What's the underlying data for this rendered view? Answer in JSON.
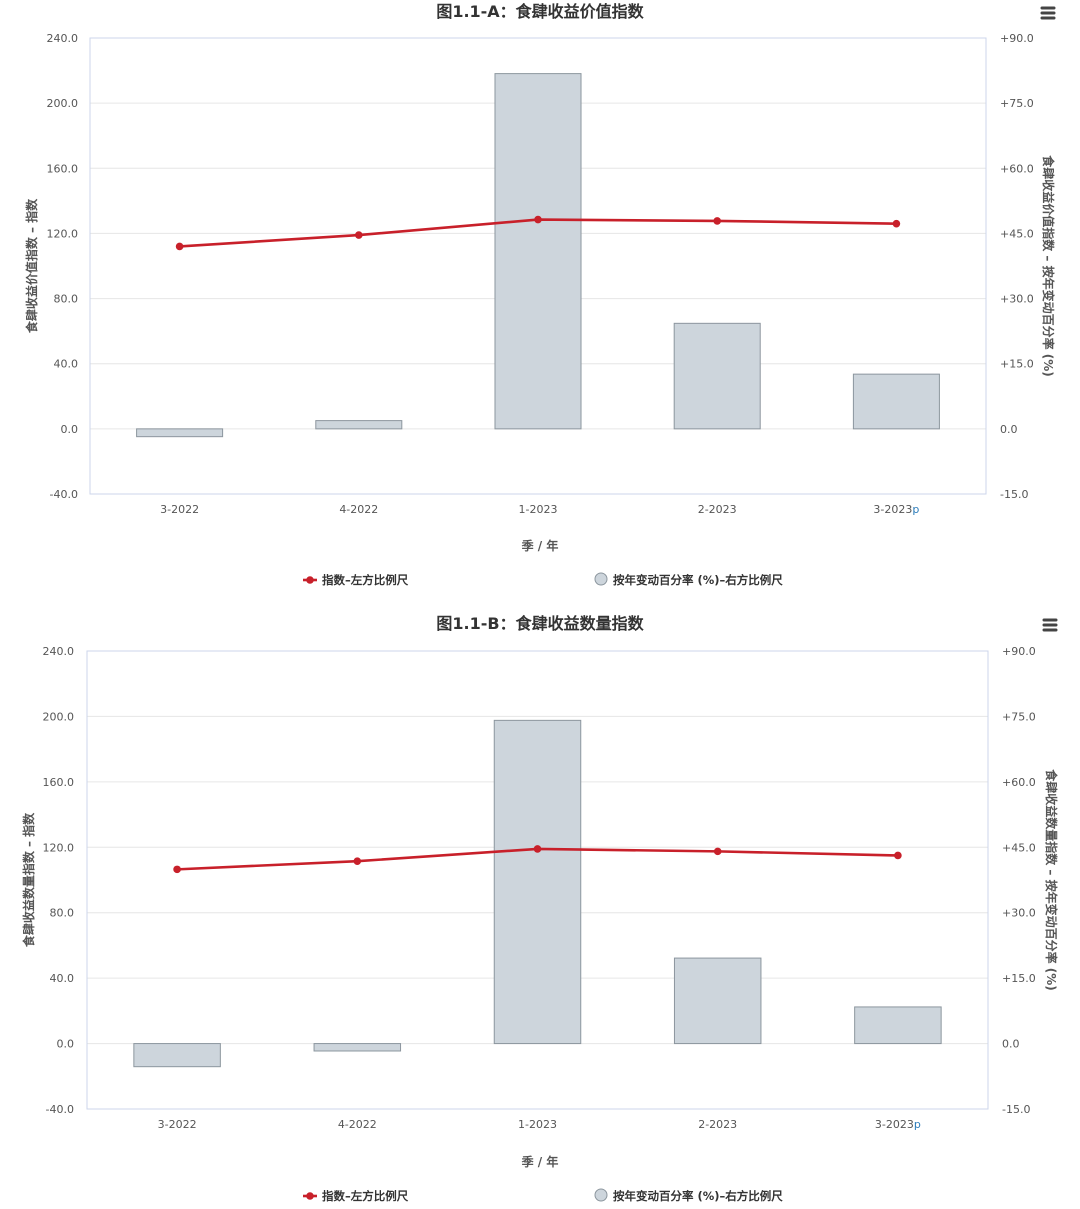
{
  "colors": {
    "index_line": "#c8202a",
    "bar_fill": "#cdd5dc",
    "bar_stroke": "#8c969e",
    "gridline": "#e6e6e6",
    "axis": "#ccd6eb",
    "text": "#333333"
  },
  "menu_icon": "hamburger-menu-icon",
  "chart_data": [
    {
      "type": "bar+line",
      "title": "图1.1-A：食肆收益价值指数",
      "xlabel": "季 / 年",
      "ylabel_left": "食肆收益价值指数 – 指数",
      "ylabel_right": "食肆收益价值指数 – 按年变动百分率 (%)",
      "categories": [
        "3-2022",
        "4-2022",
        "1-2023",
        "2-2023",
        "3-2023"
      ],
      "category_suffix": [
        "",
        "",
        "",
        "",
        "p"
      ],
      "ylim_left": [
        -40,
        240
      ],
      "ylim_right": [
        -15,
        90
      ],
      "ticks_left": [
        "-40.0",
        "0.0",
        "40.0",
        "80.0",
        "120.0",
        "160.0",
        "200.0",
        "240.0"
      ],
      "ticks_right": [
        "-15.0",
        "0.0",
        "+15.0",
        "+30.0",
        "+45.0",
        "+60.0",
        "+75.0",
        "+90.0"
      ],
      "series": [
        {
          "name": "按年变动百分率 (%)–右方比例尺",
          "type": "bar",
          "axis": "right",
          "values": [
            -1.8,
            1.9,
            81.8,
            24.3,
            12.6
          ]
        },
        {
          "name": "指数–左方比例尺",
          "type": "line",
          "axis": "left",
          "values": [
            112.0,
            119.0,
            128.5,
            127.7,
            126.0
          ]
        }
      ],
      "legend": [
        "指数–左方比例尺",
        "按年变动百分率 (%)–右方比例尺"
      ],
      "legend_position": "bottom-center",
      "grid": true
    },
    {
      "type": "bar+line",
      "title": "图1.1-B：食肆收益数量指数",
      "xlabel": "季 / 年",
      "ylabel_left": "食肆收益数量指数 – 指数",
      "ylabel_right": "食肆收益数量指数 – 按年变动百分率 (%)",
      "categories": [
        "3-2022",
        "4-2022",
        "1-2023",
        "2-2023",
        "3-2023"
      ],
      "category_suffix": [
        "",
        "",
        "",
        "",
        "p"
      ],
      "ylim_left": [
        -40,
        240
      ],
      "ylim_right": [
        -15,
        90
      ],
      "ticks_left": [
        "-40.0",
        "0.0",
        "40.0",
        "80.0",
        "120.0",
        "160.0",
        "200.0",
        "240.0"
      ],
      "ticks_right": [
        "-15.0",
        "0.0",
        "+15.0",
        "+30.0",
        "+45.0",
        "+60.0",
        "+75.0",
        "+90.0"
      ],
      "series": [
        {
          "name": "按年变动百分率 (%)–右方比例尺",
          "type": "bar",
          "axis": "right",
          "values": [
            -5.3,
            -1.7,
            74.1,
            19.6,
            8.4
          ]
        },
        {
          "name": "指数–左方比例尺",
          "type": "line",
          "axis": "left",
          "values": [
            106.5,
            111.5,
            119.0,
            117.5,
            115.0
          ]
        }
      ],
      "legend": [
        "指数–左方比例尺",
        "按年变动百分率 (%)–右方比例尺"
      ],
      "legend_position": "bottom-center",
      "grid": true
    }
  ]
}
